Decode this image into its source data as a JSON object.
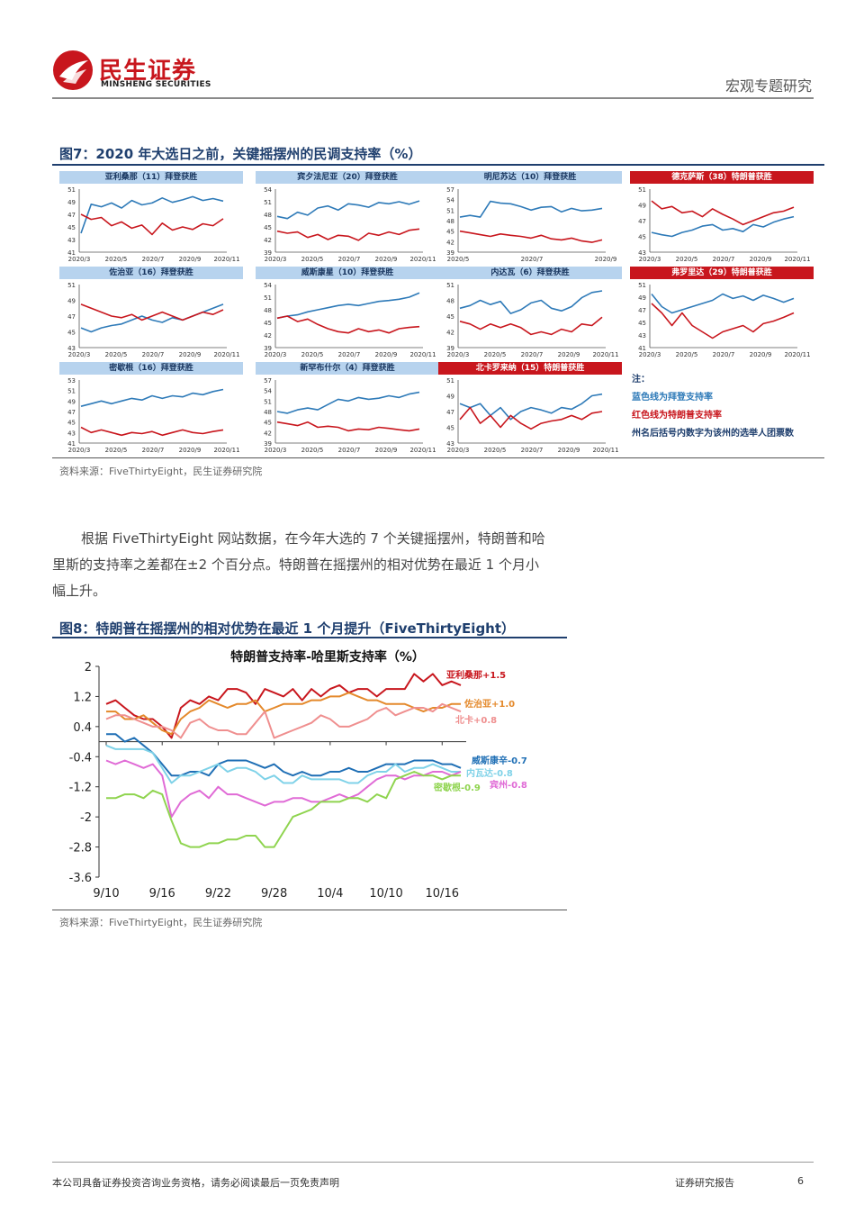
{
  "header": {
    "logo_cn": "民生证券",
    "logo_en": "MINSHENG SECURITIES",
    "report_type": "宏观专题研究"
  },
  "colors": {
    "brand_red": "#c8161d",
    "title_navy": "#1f3f6e",
    "biden_blue": "#2e7ab8",
    "trump_red": "#c8161d"
  },
  "fig7": {
    "title": "图7：2020 年大选日之前，关键摇摆州的民调支持率（%）",
    "source": "资料来源：FiveThirtyEight，民生证券研究院",
    "notes": {
      "heading": "注：",
      "blue": "蓝色线为拜登支持率",
      "red": "红色线为特朗普支持率",
      "votes": "州名后括号内数字为该州的选举人团票数"
    }
  },
  "body_text": {
    "line1": "根据 FiveThirtyEight 网站数据，在今年大选的 7 个关键摇摆州，特朗普和哈",
    "line2": "里斯的支持率之差都在±2 个百分点。特朗普在摇摆州的相对优势在最近 1 个月小",
    "line3": "幅上升。"
  },
  "fig8": {
    "title": "图8：特朗普在摇摆州的相对优势在最近 1 个月提升（FiveThirtyEight）",
    "source": "资料来源：FiveThirtyEight，民生证券研究院"
  },
  "chart_data": [
    {
      "type": "line",
      "title": "亚利桑那（11）拜登获胜",
      "title_style": "blue",
      "xticks": [
        "2020/3",
        "2020/5",
        "2020/7",
        "2020/9",
        "2020/11"
      ],
      "yticks": [
        41,
        43,
        45,
        47,
        49,
        51
      ],
      "ylim": [
        41,
        51
      ],
      "series": [
        {
          "color": "#2e7ab8",
          "values": [
            44,
            48.6,
            48.2,
            48.8,
            48,
            49.2,
            48.5,
            48.8,
            49.6,
            48.9,
            49.3,
            49.8,
            49.2,
            49.5,
            49.1
          ]
        },
        {
          "color": "#c8161d",
          "values": [
            47,
            46.2,
            46.5,
            45.2,
            45.8,
            44.8,
            45.3,
            43.8,
            45.6,
            44.5,
            45,
            44.6,
            45.5,
            45.2,
            46.3
          ]
        }
      ]
    },
    {
      "type": "line",
      "title": "宾夕法尼亚（20）拜登获胜",
      "title_style": "blue",
      "xticks": [
        "2020/3",
        "2020/5",
        "2020/7",
        "2020/9",
        "2020/11"
      ],
      "yticks": [
        39,
        42,
        45,
        48,
        51,
        54
      ],
      "ylim": [
        39,
        54
      ],
      "series": [
        {
          "color": "#2e7ab8",
          "values": [
            47.5,
            47,
            48.5,
            47.8,
            49.5,
            50,
            49,
            50.5,
            50.2,
            49.7,
            50.8,
            50.5,
            51,
            50.4,
            51.2
          ]
        },
        {
          "color": "#c8161d",
          "values": [
            44,
            43.5,
            43.8,
            42.5,
            43.2,
            42,
            43,
            42.8,
            41.8,
            43.5,
            43,
            43.8,
            43.2,
            44.2,
            44.5
          ]
        }
      ]
    },
    {
      "type": "line",
      "title": "明尼苏达（10）拜登获胜",
      "title_style": "blue",
      "xticks": [
        "2020/5",
        "2020/7",
        "2020/9"
      ],
      "yticks": [
        39,
        42,
        45,
        48,
        51,
        54,
        57
      ],
      "ylim": [
        39,
        57
      ],
      "series": [
        {
          "color": "#2e7ab8",
          "values": [
            49,
            49.5,
            49,
            53.5,
            53,
            52.8,
            52,
            51,
            51.8,
            52,
            50.5,
            51.5,
            50.8,
            51,
            51.5
          ]
        },
        {
          "color": "#c8161d",
          "values": [
            45,
            44.5,
            44,
            43.5,
            44.2,
            43.8,
            43.5,
            43,
            43.8,
            42.8,
            42.5,
            43,
            42.2,
            41.8,
            42.5
          ]
        }
      ]
    },
    {
      "type": "line",
      "title": "德克萨斯（38）特朗普获胜",
      "title_style": "red",
      "xticks": [
        "2020/3",
        "2020/5",
        "2020/7",
        "2020/9",
        "2020/11"
      ],
      "yticks": [
        43,
        45,
        47,
        49,
        51
      ],
      "ylim": [
        43,
        51
      ],
      "series": [
        {
          "color": "#2e7ab8",
          "values": [
            45.5,
            45.2,
            45,
            45.5,
            45.8,
            46.3,
            46.5,
            45.8,
            46,
            45.6,
            46.5,
            46.2,
            46.8,
            47.2,
            47.5
          ]
        },
        {
          "color": "#c8161d",
          "values": [
            49.5,
            48.5,
            48.8,
            48,
            48.2,
            47.5,
            48.5,
            47.8,
            47.2,
            46.5,
            47,
            47.5,
            48,
            48.2,
            48.7
          ]
        }
      ]
    },
    {
      "type": "line",
      "title": "佐治亚（16）拜登获胜",
      "title_style": "blue",
      "xticks": [
        "2020/3",
        "2020/5",
        "2020/7",
        "2020/9",
        "2020/11"
      ],
      "yticks": [
        43,
        45,
        47,
        49,
        51
      ],
      "ylim": [
        43,
        51
      ],
      "series": [
        {
          "color": "#2e7ab8",
          "values": [
            45.5,
            45,
            45.5,
            45.8,
            46,
            46.5,
            47,
            46.5,
            46.2,
            46.8,
            46.5,
            47,
            47.5,
            48,
            48.5
          ]
        },
        {
          "color": "#c8161d",
          "values": [
            48.5,
            48,
            47.5,
            47,
            46.8,
            47.2,
            46.5,
            47,
            47.5,
            47,
            46.5,
            47,
            47.5,
            47.2,
            47.8
          ]
        }
      ]
    },
    {
      "type": "line",
      "title": "威斯康星（10）拜登获胜",
      "title_style": "blue",
      "xticks": [
        "2020/3",
        "2020/5",
        "2020/7",
        "2020/9",
        "2020/11"
      ],
      "yticks": [
        39,
        42,
        45,
        48,
        51,
        54
      ],
      "ylim": [
        39,
        54
      ],
      "series": [
        {
          "color": "#2e7ab8",
          "values": [
            46,
            46.5,
            46.8,
            47.5,
            48,
            48.5,
            49,
            49.3,
            49,
            49.5,
            50,
            50.2,
            50.5,
            51,
            52
          ]
        },
        {
          "color": "#c8161d",
          "values": [
            46,
            46.5,
            45.2,
            45.8,
            44.5,
            43.5,
            42.8,
            42.5,
            43.5,
            42.8,
            43.2,
            42.5,
            43.5,
            43.8,
            44
          ]
        }
      ]
    },
    {
      "type": "line",
      "title": "内达瓦（6）拜登获胜",
      "title_style": "blue",
      "xticks": [
        "2020/3",
        "2020/5",
        "2020/7",
        "2020/9",
        "2020/11"
      ],
      "yticks": [
        39,
        42,
        45,
        48,
        51
      ],
      "ylim": [
        39,
        51
      ],
      "series": [
        {
          "color": "#2e7ab8",
          "values": [
            46.5,
            47,
            48,
            47.2,
            47.8,
            45.5,
            46.2,
            47.5,
            48,
            46.5,
            46,
            46.8,
            48.5,
            49.5,
            49.8
          ]
        },
        {
          "color": "#c8161d",
          "values": [
            44,
            43.5,
            42.5,
            43.5,
            42.8,
            43.5,
            42.8,
            41.5,
            42,
            41.5,
            42.5,
            42,
            43.5,
            43.2,
            44.8
          ]
        }
      ]
    },
    {
      "type": "line",
      "title": "弗罗里达（29）特朗普获胜",
      "title_style": "red",
      "xticks": [
        "2020/3",
        "2020/5",
        "2020/7",
        "2020/9",
        "2020/11"
      ],
      "yticks": [
        41,
        43,
        45,
        47,
        49,
        51
      ],
      "ylim": [
        41,
        51
      ],
      "series": [
        {
          "color": "#2e7ab8",
          "values": [
            49.5,
            47.5,
            46.5,
            47,
            47.5,
            48,
            48.5,
            49.5,
            48.8,
            49.2,
            48.5,
            49.3,
            48.8,
            48.2,
            48.8
          ]
        },
        {
          "color": "#c8161d",
          "values": [
            48,
            46.5,
            44.5,
            46.5,
            44.5,
            43.5,
            42.5,
            43.5,
            44,
            44.5,
            43.5,
            44.8,
            45.2,
            45.8,
            46.5
          ]
        }
      ]
    },
    {
      "type": "line",
      "title": "密歇根（16）拜登获胜",
      "title_style": "blue",
      "xticks": [
        "2020/3",
        "2020/5",
        "2020/7",
        "2020/9",
        "2020/11"
      ],
      "yticks": [
        41,
        43,
        45,
        47,
        49,
        51,
        53
      ],
      "ylim": [
        41,
        53
      ],
      "series": [
        {
          "color": "#2e7ab8",
          "values": [
            48,
            48.5,
            49,
            48.5,
            49,
            49.5,
            49.2,
            50,
            49.5,
            50,
            49.8,
            50.5,
            50.2,
            50.8,
            51.2
          ]
        },
        {
          "color": "#c8161d",
          "values": [
            44,
            43,
            43.5,
            43,
            42.5,
            43,
            42.8,
            43.2,
            42.5,
            43,
            43.5,
            43,
            42.8,
            43.2,
            43.5
          ]
        }
      ]
    },
    {
      "type": "line",
      "title": "新罕布什尔（4）拜登获胜",
      "title_style": "blue",
      "xticks": [
        "2020/3",
        "2020/5",
        "2020/7",
        "2020/9",
        "2020/11"
      ],
      "yticks": [
        39,
        42,
        45,
        48,
        51,
        54,
        57
      ],
      "ylim": [
        39,
        57
      ],
      "series": [
        {
          "color": "#2e7ab8",
          "values": [
            48,
            47.5,
            48.5,
            49,
            48.5,
            50,
            51.5,
            51,
            52,
            51.5,
            51.8,
            52.5,
            52,
            53,
            53.5
          ]
        },
        {
          "color": "#c8161d",
          "values": [
            45,
            44.5,
            44,
            45,
            43.5,
            43.8,
            43.5,
            42.5,
            43,
            42.8,
            43.5,
            43.2,
            42.8,
            42.5,
            43
          ]
        }
      ]
    },
    {
      "type": "line",
      "title": "北卡罗来纳（15）特朗普获胜",
      "title_style": "red",
      "xticks": [
        "2020/3",
        "2020/5",
        "2020/7",
        "2020/9",
        "2020/11"
      ],
      "yticks": [
        43,
        45,
        47,
        49,
        51
      ],
      "ylim": [
        43,
        51
      ],
      "series": [
        {
          "color": "#2e7ab8",
          "values": [
            48,
            47.5,
            48,
            46.5,
            47.5,
            46,
            47,
            47.5,
            47.2,
            46.8,
            47.5,
            47.3,
            48,
            49,
            49.2
          ]
        },
        {
          "color": "#c8161d",
          "values": [
            46,
            47.5,
            45.5,
            46.5,
            45,
            46.5,
            45.5,
            44.8,
            45.5,
            45.8,
            46,
            46.5,
            46,
            46.8,
            47
          ]
        }
      ]
    },
    {
      "type": "line",
      "title": "特朗普支持率-哈里斯支持率（%）",
      "x": [
        "9/10",
        "9/11",
        "9/12",
        "9/13",
        "9/14",
        "9/15",
        "9/16",
        "9/17",
        "9/18",
        "9/19",
        "9/20",
        "9/21",
        "9/22",
        "9/23",
        "9/24",
        "9/25",
        "9/26",
        "9/27",
        "9/28",
        "9/29",
        "9/30",
        "10/1",
        "10/2",
        "10/3",
        "10/4",
        "10/5",
        "10/6",
        "10/7",
        "10/8",
        "10/9",
        "10/10",
        "10/11",
        "10/12",
        "10/13",
        "10/14",
        "10/15",
        "10/16",
        "10/17",
        "10/18"
      ],
      "xticks": [
        "9/10",
        "9/16",
        "9/22",
        "9/28",
        "10/4",
        "10/10",
        "10/16"
      ],
      "yticks": [
        -3.6,
        -2.8,
        -2,
        -1.2,
        -0.4,
        0.4,
        1.2,
        2
      ],
      "ylim": [
        -3.6,
        2
      ],
      "series": [
        {
          "name": "亚利桑那+1.5",
          "color": "#c8161d",
          "values": [
            1.0,
            1.1,
            0.9,
            0.7,
            0.6,
            0.6,
            0.4,
            0.1,
            0.9,
            1.1,
            1.0,
            1.2,
            1.1,
            1.4,
            1.4,
            1.3,
            1.0,
            1.4,
            1.3,
            1.2,
            1.4,
            1.1,
            1.4,
            1.2,
            1.4,
            1.5,
            1.3,
            1.4,
            1.4,
            1.2,
            1.4,
            1.4,
            1.4,
            1.8,
            1.6,
            1.8,
            1.5,
            1.6,
            1.5
          ]
        },
        {
          "name": "佐治亚+1.0",
          "color": "#e4892b",
          "values": [
            0.8,
            0.8,
            0.6,
            0.6,
            0.7,
            0.5,
            0.3,
            0.2,
            0.6,
            0.8,
            0.9,
            1.1,
            1.0,
            0.9,
            1.0,
            1.0,
            1.1,
            0.8,
            0.9,
            1.0,
            1.0,
            1.0,
            1.1,
            1.1,
            1.2,
            1.2,
            1.3,
            1.2,
            1.1,
            1.1,
            1.0,
            1.0,
            1.0,
            0.9,
            0.8,
            0.9,
            0.9,
            1.0,
            1.0
          ]
        },
        {
          "name": "北卡+0.8",
          "color": "#ef8f8f",
          "values": [
            0.6,
            0.7,
            0.7,
            0.6,
            0.5,
            0.4,
            0.4,
            0.3,
            0.1,
            0.5,
            0.6,
            0.4,
            0.3,
            0.3,
            0.2,
            0.2,
            0.5,
            0.8,
            0.1,
            0.2,
            0.3,
            0.4,
            0.5,
            0.7,
            0.6,
            0.4,
            0.4,
            0.5,
            0.6,
            0.8,
            0.9,
            0.7,
            0.8,
            0.9,
            0.9,
            0.8,
            1.0,
            0.9,
            0.8
          ]
        },
        {
          "name": "威斯康辛-0.7",
          "color": "#1f6fb5",
          "values": [
            0.2,
            0.2,
            0.0,
            0.1,
            -0.1,
            -0.3,
            -0.6,
            -0.9,
            -0.9,
            -0.8,
            -0.8,
            -0.9,
            -0.6,
            -0.5,
            -0.5,
            -0.5,
            -0.6,
            -0.7,
            -0.6,
            -0.8,
            -0.9,
            -0.8,
            -0.9,
            -0.9,
            -0.8,
            -0.8,
            -0.7,
            -0.8,
            -0.8,
            -0.7,
            -0.6,
            -0.6,
            -0.6,
            -0.5,
            -0.5,
            -0.5,
            -0.6,
            -0.6,
            -0.7
          ]
        },
        {
          "name": "内瓦达-0.8",
          "color": "#7fd2e8",
          "values": [
            -0.1,
            -0.2,
            -0.2,
            -0.2,
            -0.2,
            -0.3,
            -0.7,
            -1.1,
            -0.9,
            -0.9,
            -0.8,
            -0.7,
            -0.6,
            -0.8,
            -0.7,
            -0.7,
            -0.8,
            -1.0,
            -0.9,
            -1.1,
            -1.1,
            -0.9,
            -1.0,
            -1.0,
            -1.0,
            -1.0,
            -1.1,
            -1.1,
            -0.9,
            -0.8,
            -0.8,
            -0.6,
            -0.8,
            -0.7,
            -0.7,
            -0.6,
            -0.7,
            -0.8,
            -0.8
          ]
        },
        {
          "name": "宾州-0.8",
          "color": "#e06bd6",
          "values": [
            -0.5,
            -0.6,
            -0.5,
            -0.6,
            -0.7,
            -0.6,
            -0.9,
            -2.0,
            -1.6,
            -1.4,
            -1.3,
            -1.5,
            -1.2,
            -1.4,
            -1.4,
            -1.5,
            -1.6,
            -1.7,
            -1.6,
            -1.6,
            -1.5,
            -1.5,
            -1.6,
            -1.6,
            -1.5,
            -1.4,
            -1.5,
            -1.4,
            -1.2,
            -1.0,
            -0.9,
            -0.9,
            -1.0,
            -0.9,
            -0.9,
            -0.8,
            -0.8,
            -0.9,
            -0.8
          ]
        },
        {
          "name": "密歇根-0.9",
          "color": "#8fd44f",
          "values": [
            -1.5,
            -1.5,
            -1.4,
            -1.4,
            -1.5,
            -1.3,
            -1.4,
            -2.1,
            -2.7,
            -2.8,
            -2.8,
            -2.7,
            -2.7,
            -2.6,
            -2.6,
            -2.5,
            -2.5,
            -2.8,
            -2.8,
            -2.4,
            -2.0,
            -1.9,
            -1.8,
            -1.6,
            -1.6,
            -1.6,
            -1.5,
            -1.5,
            -1.6,
            -1.4,
            -1.5,
            -1.0,
            -0.9,
            -0.8,
            -0.9,
            -0.9,
            -1.0,
            -0.9,
            -0.9
          ]
        }
      ]
    }
  ],
  "footer": {
    "disclaimer": "本公司具备证券投资咨询业务资格，请务必阅读最后一页免责声明",
    "doc_type": "证券研究报告",
    "page": "6"
  }
}
